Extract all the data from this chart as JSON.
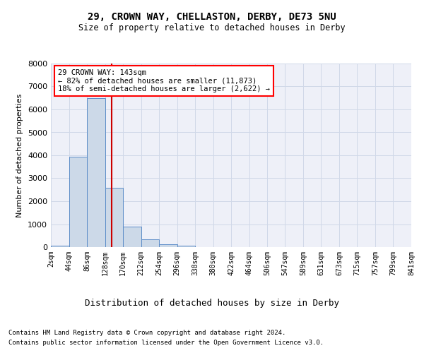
{
  "title1": "29, CROWN WAY, CHELLASTON, DERBY, DE73 5NU",
  "title2": "Size of property relative to detached houses in Derby",
  "xlabel": "Distribution of detached houses by size in Derby",
  "ylabel": "Number of detached properties",
  "footnote1": "Contains HM Land Registry data © Crown copyright and database right 2024.",
  "footnote2": "Contains public sector information licensed under the Open Government Licence v3.0.",
  "annotation_line1": "29 CROWN WAY: 143sqm",
  "annotation_line2": "← 82% of detached houses are smaller (11,873)",
  "annotation_line3": "18% of semi-detached houses are larger (2,622) →",
  "property_size": 143,
  "bin_edges": [
    2,
    44,
    86,
    128,
    170,
    212,
    254,
    296,
    338,
    380,
    422,
    464,
    506,
    547,
    589,
    631,
    673,
    715,
    757,
    799,
    841
  ],
  "bin_counts": [
    50,
    3950,
    6500,
    2600,
    900,
    350,
    130,
    70,
    0,
    0,
    0,
    0,
    0,
    0,
    0,
    0,
    0,
    0,
    0,
    0
  ],
  "bar_color": "#ccd9e8",
  "bar_edge_color": "#5b8cc8",
  "line_color": "#cc0000",
  "grid_color": "#d0d8e8",
  "bg_color": "#eef0f8",
  "ylim": [
    0,
    8000
  ],
  "yticks": [
    0,
    1000,
    2000,
    3000,
    4000,
    5000,
    6000,
    7000,
    8000
  ]
}
